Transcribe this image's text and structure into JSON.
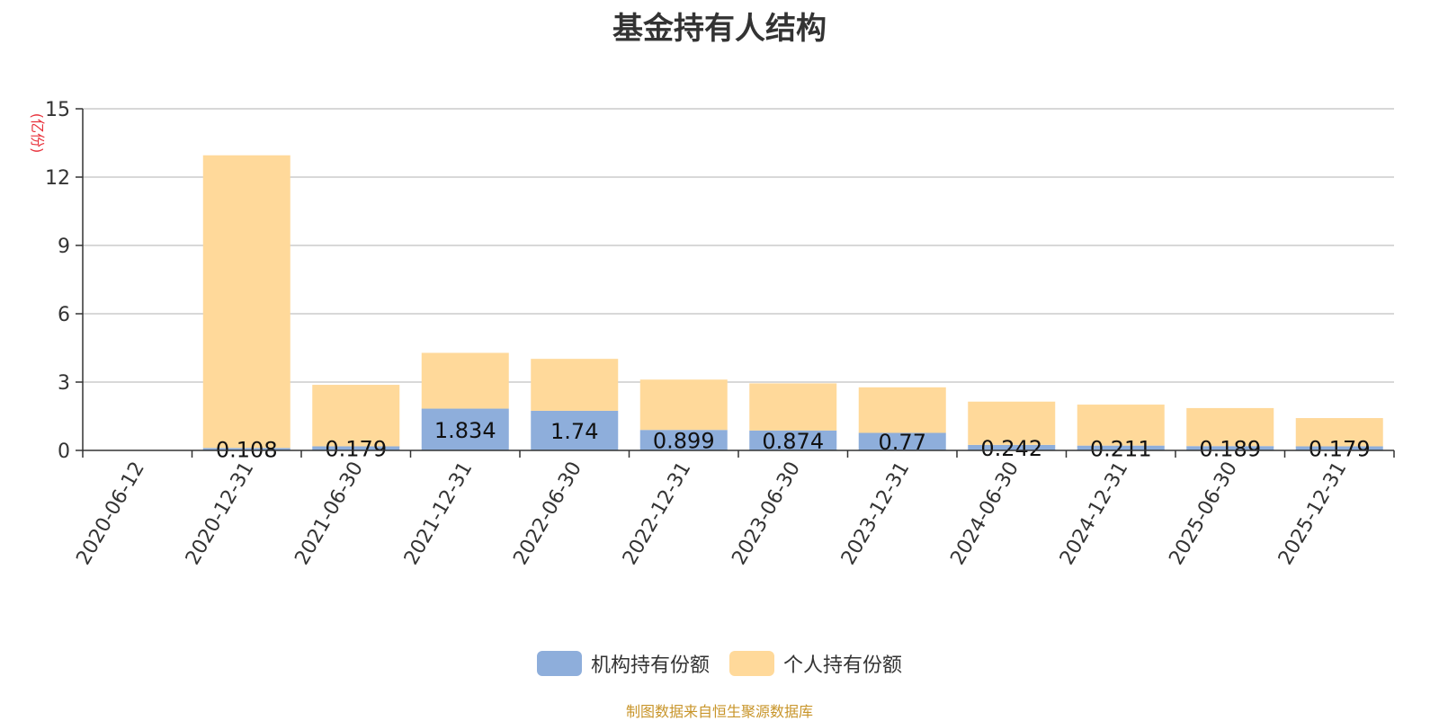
{
  "chart_data": {
    "type": "bar",
    "stacked": true,
    "title": "基金持有人结构",
    "ylabel": "(亿份)",
    "xlabel": "",
    "ylim": [
      0,
      15
    ],
    "yticks": [
      "0",
      "3",
      "6",
      "9",
      "12",
      "15"
    ],
    "grid": true,
    "legend_position": "bottom",
    "categories": [
      "2020-06-12",
      "2020-12-31",
      "2021-06-30",
      "2021-12-31",
      "2022-06-30",
      "2022-12-31",
      "2023-06-30",
      "2023-12-31",
      "2024-06-30",
      "2024-12-31",
      "2025-06-30",
      "2025-12-31"
    ],
    "series": [
      {
        "name": "机构持有份额",
        "color": "#8eaedb",
        "values": [
          0,
          0.108,
          0.179,
          1.834,
          1.74,
          0.899,
          0.874,
          0.77,
          0.242,
          0.211,
          0.189,
          0.179
        ],
        "labels": [
          "",
          "0.108",
          "0.179",
          "1.834",
          "1.74",
          "0.899",
          "0.874",
          "0.77",
          "0.242",
          "0.211",
          "0.189",
          "0.179"
        ]
      },
      {
        "name": "个人持有份额",
        "color": "#ffd99a",
        "values": [
          0,
          12.85,
          2.7,
          2.45,
          2.28,
          2.21,
          2.07,
          2.0,
          1.9,
          1.8,
          1.67,
          1.24
        ]
      }
    ]
  },
  "source_note": "制图数据来自恒生聚源数据库"
}
